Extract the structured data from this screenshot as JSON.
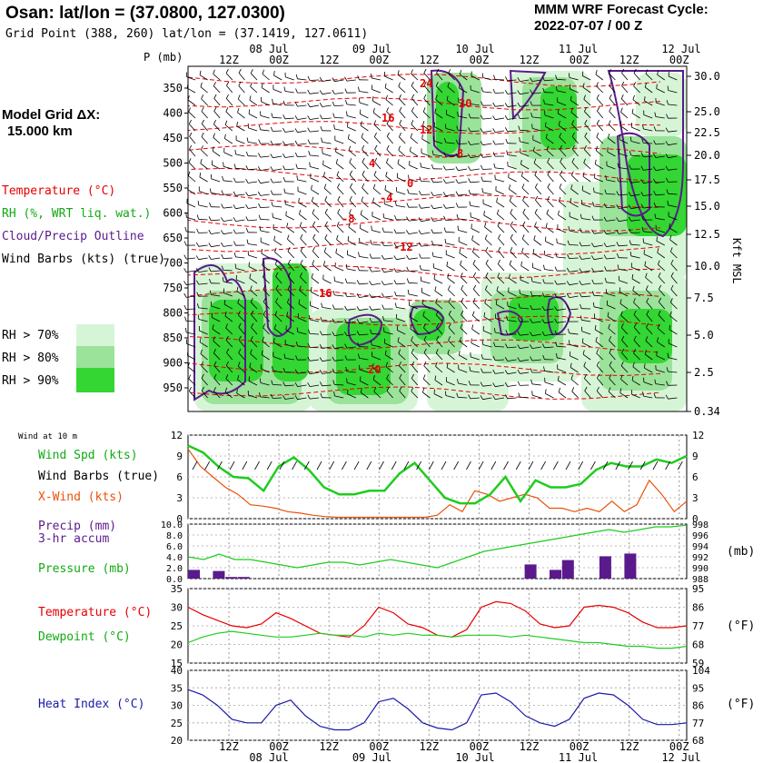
{
  "header": {
    "title": "Osan:  lat/lon = (37.0800, 127.0300)",
    "subtitle": "Grid Point (388, 260) lat/lon = (37.1419, 127.0611)",
    "cycle_line1": "MMM WRF Forecast Cycle:",
    "cycle_line2": "2022-07-07 / 00  Z"
  },
  "legend": {
    "model_grid_line1": "Model Grid ΔX:",
    "model_grid_line2": "15.000 km",
    "temperature": "Temperature (°C)",
    "rh": "RH (%, WRT liq. wat.)",
    "cloud": "Cloud/Precip Outline",
    "wind_barbs": "Wind Barbs (kts) (true)",
    "rh70": "RH > 70%",
    "rh80": "RH > 80%",
    "rh90": "RH > 90%",
    "rh_colors": [
      "#d6f5d6",
      "#9be29b",
      "#33d633"
    ],
    "p_label": "P (mb)",
    "kft_label": "Kft MSL"
  },
  "time_axis": {
    "top_hours": [
      "12Z",
      "00Z",
      "12Z",
      "00Z",
      "12Z",
      "00Z",
      "12Z",
      "00Z",
      "12Z",
      "00Z"
    ],
    "top_dates": [
      "08 Jul",
      "09 Jul",
      "10 Jul",
      "11 Jul",
      "12 Jul"
    ],
    "bottom_hours": [
      "12Z",
      "00Z",
      "12Z",
      "00Z",
      "12Z",
      "00Z",
      "12Z",
      "00Z",
      "12Z",
      "00Z"
    ],
    "bottom_dates": [
      "08 Jul",
      "09 Jul",
      "10 Jul",
      "11 Jul",
      "12 Jul"
    ]
  },
  "cross_section": {
    "pressure_labels": [
      "350",
      "400",
      "450",
      "500",
      "550",
      "600",
      "650",
      "700",
      "750",
      "800",
      "850",
      "900",
      "950"
    ],
    "height_labels": [
      "30.0",
      "25.0",
      "22.5",
      "20.0",
      "17.5",
      "15.0",
      "12.5",
      "10.0",
      "7.5",
      "5.0",
      "2.5",
      "0.34"
    ],
    "temp_labels": [
      "24",
      "20",
      "16",
      "12",
      "8",
      "4",
      "0",
      "-4",
      "-8",
      "-12",
      "16",
      "20"
    ]
  },
  "panels": {
    "wind_title": "Wind at 10 m",
    "wind_spd": "Wind Spd (kts)",
    "wind_barbs": "Wind Barbs (true)",
    "xwind": "X-Wind (kts)",
    "wind_ticks": [
      "12",
      "9",
      "6",
      "3",
      "0"
    ],
    "precip_line1": "Precip (mm)",
    "precip_line2": "3-hr accum",
    "pressure": "Pressure (mb)",
    "precip_ticks": [
      "10.0",
      "8.0",
      "6.0",
      "4.0",
      "2.0",
      "0.0"
    ],
    "pressure_ticks": [
      "998",
      "996",
      "994",
      "992",
      "990",
      "988"
    ],
    "mb_unit": "(mb)",
    "temperature": "Temperature (°C)",
    "dewpoint": "Dewpoint (°C)",
    "temp_ticks_c": [
      "35",
      "30",
      "25",
      "20",
      "15"
    ],
    "temp_ticks_f": [
      "95",
      "86",
      "77",
      "68",
      "59"
    ],
    "f_unit": "(°F)",
    "heat_index": "Heat Index (°C)",
    "hi_ticks_c": [
      "40",
      "35",
      "30",
      "25",
      "20"
    ],
    "hi_ticks_f": [
      "104",
      "95",
      "86",
      "77",
      "68"
    ],
    "f_unit2": "(°F)"
  },
  "chart_data": {
    "type": "line",
    "x_hours": [
      0,
      3,
      6,
      9,
      12,
      15,
      18,
      21,
      24,
      27,
      30,
      33,
      36,
      39,
      42,
      45,
      48,
      51,
      54,
      57,
      60,
      63,
      66,
      69,
      72,
      75,
      78,
      81,
      84,
      87,
      90,
      93,
      96,
      99,
      102,
      105,
      108,
      111,
      114,
      117,
      120
    ],
    "series": [
      {
        "name": "Wind Spd (kts)",
        "color": "#1fcc1f",
        "values": [
          10.5,
          9.5,
          7.5,
          6,
          5.8,
          4,
          7.5,
          8.8,
          7,
          4.5,
          3.5,
          3.5,
          4,
          4,
          6.5,
          8,
          5.5,
          3,
          2.2,
          2.2,
          3.5,
          6,
          2.5,
          5.5,
          4.5,
          4.5,
          5,
          7,
          8,
          7.5,
          7.5,
          8.5,
          8,
          9
        ]
      },
      {
        "name": "X-Wind (kts)",
        "color": "#e8520a",
        "values": [
          10,
          7.5,
          6,
          4.5,
          3.5,
          2,
          1.8,
          1.5,
          1,
          0.8,
          0.5,
          0.3,
          0.2,
          0.2,
          0.2,
          0.2,
          0.2,
          0.2,
          0.2,
          0.2,
          0.5,
          2,
          1,
          4,
          3.5,
          2.5,
          3,
          3.5,
          3,
          1.5,
          1.5,
          1,
          1.5,
          1,
          2.5,
          1,
          2,
          5.5,
          3.5,
          1,
          2.5
        ]
      },
      {
        "name": "Pressure (mb)",
        "color": "#1fcc1f",
        "values": [
          992,
          991.5,
          992.5,
          991.5,
          991.5,
          991,
          990.5,
          990,
          990.5,
          991,
          991,
          990.5,
          991,
          991.5,
          991,
          990.5,
          990,
          991,
          992,
          993,
          993.5,
          994,
          994.5,
          995,
          995.5,
          996,
          996.5,
          997,
          996.5,
          997,
          997.5,
          997.5,
          997.8
        ]
      },
      {
        "name": "Temperature (°C)",
        "color": "#e60000",
        "values": [
          30,
          28,
          26.5,
          25,
          24.5,
          25.5,
          28.5,
          27,
          25,
          23,
          22.5,
          22,
          25,
          30,
          28.5,
          25.5,
          24.5,
          22.5,
          22,
          24,
          30,
          31.5,
          31,
          29,
          25.5,
          24.5,
          25,
          30,
          30.5,
          30,
          28.5,
          26,
          24.5,
          24.5,
          25
        ]
      },
      {
        "name": "Dewpoint (°C)",
        "color": "#1fcc1f",
        "values": [
          20.5,
          22,
          23,
          23.5,
          23,
          22.5,
          22,
          22,
          22.5,
          23,
          22.5,
          22.5,
          22,
          23,
          22.5,
          23,
          22.5,
          22.5,
          22,
          22.5,
          22.5,
          22.5,
          22,
          22.5,
          22,
          21.5,
          21,
          20.5,
          20.5,
          20,
          19.5,
          19.5,
          19,
          19,
          19.5
        ]
      },
      {
        "name": "Heat Index (°C)",
        "color": "#1a1aa8",
        "values": [
          34.5,
          33,
          30,
          26,
          25,
          25,
          30,
          31.5,
          27,
          24,
          23,
          23,
          25,
          31,
          32,
          29,
          25,
          23.5,
          23,
          25,
          33,
          33.5,
          31,
          27,
          25,
          24,
          26,
          32,
          33.5,
          33,
          30,
          26,
          24.5,
          24.5,
          25
        ]
      }
    ],
    "precip_bars": [
      {
        "hour": 0,
        "value": 1.6
      },
      {
        "hour": 6,
        "value": 1.4
      },
      {
        "hour": 9,
        "value": 0.3
      },
      {
        "hour": 12,
        "value": 0.3
      },
      {
        "hour": 81,
        "value": 2.6
      },
      {
        "hour": 87,
        "value": 1.6
      },
      {
        "hour": 90,
        "value": 3.4
      },
      {
        "hour": 99,
        "value": 4.1
      },
      {
        "hour": 105,
        "value": 4.6
      }
    ],
    "xlabel": "",
    "ylabel": "",
    "title": "Osan:  lat/lon = (37.0800, 127.0300)"
  }
}
